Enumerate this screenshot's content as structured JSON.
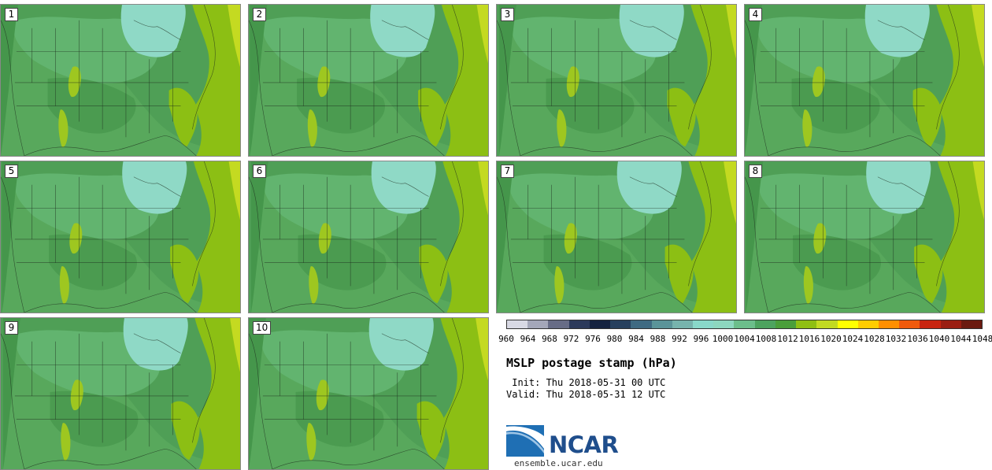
{
  "panels": [
    {
      "label": "1"
    },
    {
      "label": "2"
    },
    {
      "label": "3"
    },
    {
      "label": "4"
    },
    {
      "label": "5"
    },
    {
      "label": "6"
    },
    {
      "label": "7"
    },
    {
      "label": "8"
    },
    {
      "label": "9"
    },
    {
      "label": "10"
    }
  ],
  "legend": {
    "ticks": [
      "960",
      "964",
      "968",
      "972",
      "976",
      "980",
      "984",
      "988",
      "992",
      "996",
      "1000",
      "1004",
      "1008",
      "1012",
      "1016",
      "1020",
      "1024",
      "1028",
      "1032",
      "1036",
      "1040",
      "1044",
      "1048"
    ],
    "colors": [
      "#d8d9e4",
      "#a4a7b9",
      "#676c86",
      "#2c3a5b",
      "#152340",
      "#27405e",
      "#3f6a82",
      "#5b9499",
      "#77b3ad",
      "#89d8c9",
      "#8dd7bf",
      "#6cbe8b",
      "#4da35f",
      "#4a9e3a",
      "#8fbf13",
      "#c2da22",
      "#ffff00",
      "#ffcc00",
      "#ff8f00",
      "#f05a0c",
      "#c82410",
      "#9a1e12",
      "#6b1a10"
    ]
  },
  "title": "MSLP postage stamp (hPa)",
  "init": " Init: Thu 2018-05-31 00 UTC",
  "valid": "Valid: Thu 2018-05-31 12 UTC",
  "logo": {
    "text": "NCAR"
  },
  "url": "ensemble.ucar.edu"
}
